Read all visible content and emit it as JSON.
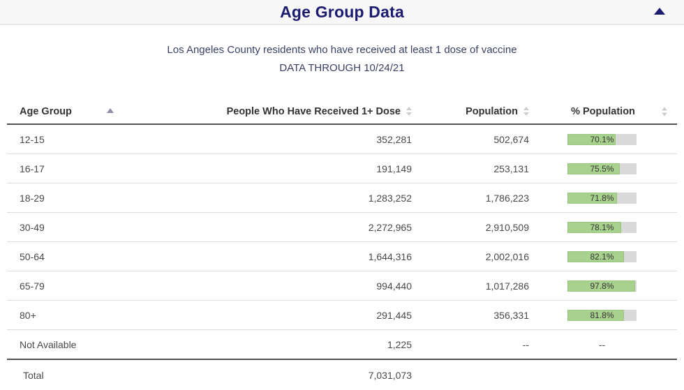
{
  "panel": {
    "title": "Age Group Data",
    "collapse_icon": "chevron-up"
  },
  "subtitle": {
    "line1": "Los Angeles County residents who have received at least 1 dose of vaccine",
    "line2": "DATA THROUGH 10/24/21"
  },
  "table": {
    "columns": [
      {
        "label": "Age Group",
        "sort_state": "ascending"
      },
      {
        "label": "People Who Have Received 1+ Dose",
        "sort_state": "none"
      },
      {
        "label": "Population",
        "sort_state": "none"
      },
      {
        "label": "% Population",
        "sort_state": "none"
      }
    ],
    "rows": [
      {
        "age_group": "12-15",
        "dose": "352,281",
        "population": "502,674",
        "pct_label": "70.1%",
        "pct_value": 70.1
      },
      {
        "age_group": "16-17",
        "dose": "191,149",
        "population": "253,131",
        "pct_label": "75.5%",
        "pct_value": 75.5
      },
      {
        "age_group": "18-29",
        "dose": "1,283,252",
        "population": "1,786,223",
        "pct_label": "71.8%",
        "pct_value": 71.8
      },
      {
        "age_group": "30-49",
        "dose": "2,272,965",
        "population": "2,910,509",
        "pct_label": "78.1%",
        "pct_value": 78.1
      },
      {
        "age_group": "50-64",
        "dose": "1,644,316",
        "population": "2,002,016",
        "pct_label": "82.1%",
        "pct_value": 82.1
      },
      {
        "age_group": "65-79",
        "dose": "994,440",
        "population": "1,017,286",
        "pct_label": "97.8%",
        "pct_value": 97.8
      },
      {
        "age_group": "80+",
        "dose": "291,445",
        "population": "356,331",
        "pct_label": "81.8%",
        "pct_value": 81.8
      },
      {
        "age_group": "Not Available",
        "dose": "1,225",
        "population": "--",
        "pct_label": "--",
        "pct_value": null
      }
    ],
    "total_row": {
      "label": "Total",
      "dose": "7,031,073",
      "population": "",
      "pct_label": ""
    }
  },
  "colors": {
    "title_navy": "#1b1b70",
    "subtitle_navy": "#3a4063",
    "header_text": "#333333",
    "bar_fill_green": "#a9d18e",
    "bar_track_gray": "#d9d9d9",
    "divider_dark": "#505050",
    "divider_light": "#dcdcdc"
  }
}
